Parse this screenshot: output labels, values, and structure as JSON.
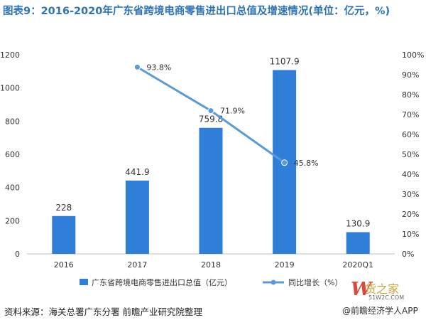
{
  "header": {
    "title": "图表9：2016-2020年广东省跨境电商零售进出口总值及增速情况(单位：亿元，%)"
  },
  "chart_data": {
    "type": "bar",
    "categories": [
      "2016",
      "2017",
      "2018",
      "2019",
      "2020Q1"
    ],
    "series": [
      {
        "name": "广东省跨境电商零售进出口总值（亿元）",
        "kind": "bar",
        "axis": "left",
        "values": [
          228,
          441.9,
          759.8,
          1107.9,
          130.9
        ],
        "labels": [
          "228",
          "441.9",
          "759.8",
          "1107.9",
          "130.9"
        ]
      },
      {
        "name": "同比增长（%）",
        "kind": "line",
        "axis": "right",
        "values": [
          null,
          93.8,
          71.9,
          45.8,
          null
        ],
        "labels": [
          "",
          "93.8%",
          "71.9%",
          "45.8%",
          ""
        ]
      }
    ],
    "ylim_left": [
      0,
      1200
    ],
    "yticks_left": [
      "0",
      "200",
      "400",
      "600",
      "800",
      "1000",
      "1200"
    ],
    "ylim_right": [
      0,
      100
    ],
    "yticks_right": [
      "0%",
      "10%",
      "20%",
      "30%",
      "40%",
      "50%",
      "60%",
      "70%",
      "80%",
      "90%",
      "100%"
    ],
    "grid": false,
    "legend_position": "bottom",
    "colors": {
      "bar": "#2f7ed8",
      "line": "#5b9bd5",
      "title": "#2e74b5"
    }
  },
  "footer": {
    "source": "资料来源：海关总署广东分署 前瞻产业研究院整理",
    "app_credit": "@前瞻经济学人APP",
    "brand_mark": "W",
    "brand_word": "货之家",
    "brand_sub": "51W2C.COM"
  }
}
